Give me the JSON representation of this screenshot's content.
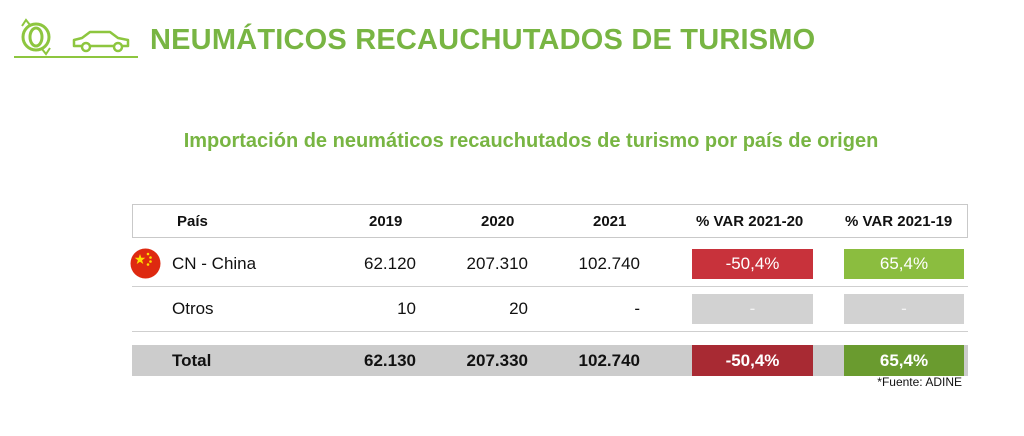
{
  "header": {
    "title": "NEUMÁTICOS RECAUCHUTADOS DE TURISMO",
    "icons": [
      "tire-recycle-icon",
      "car-icon"
    ],
    "accent_color": "#78b543"
  },
  "subtitle": "Importación de neumáticos recauchutados de turismo por país de origen",
  "table": {
    "headers": [
      "País",
      "2019",
      "2020",
      "2021",
      "% VAR 2021-20",
      "% VAR 2021-19"
    ],
    "rows": [
      {
        "country": "CN - China",
        "flag": "china-flag-icon",
        "y2019": "62.120",
        "y2020": "207.310",
        "y2021": "102.740",
        "var_21_20": "-50,4%",
        "var_21_19": "65,4%"
      },
      {
        "country": "Otros",
        "y2019": "10",
        "y2020": "20",
        "y2021": "-",
        "var_21_20": "-",
        "var_21_19": "-"
      }
    ],
    "total": {
      "label": "Total",
      "y2019": "62.130",
      "y2020": "207.330",
      "y2021": "102.740",
      "var_21_20": "-50,4%",
      "var_21_19": "65,4%"
    },
    "colors": {
      "negative": "#c8323b",
      "positive": "#8bbd3f",
      "empty": "#d2d2d2",
      "total_row": "#cccccc"
    }
  },
  "source": "*Fuente: ADINE"
}
